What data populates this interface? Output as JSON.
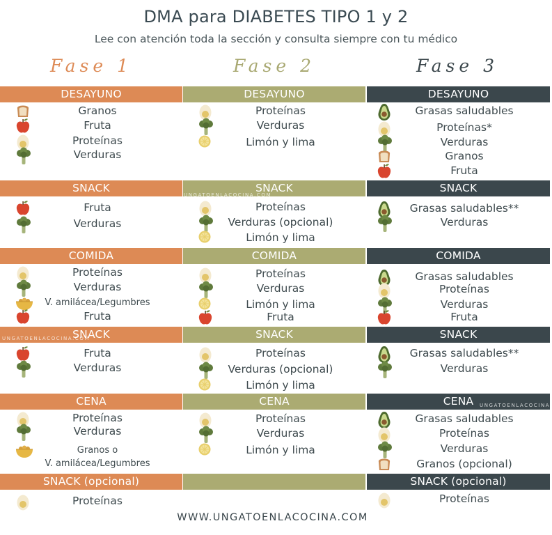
{
  "header": {
    "title": "DMA para DIABETES TIPO 1 y 2",
    "subtitle": "Lee con atención toda la sección y consulta siempre con tu médico"
  },
  "phases": [
    "Fase 1",
    "Fase 2",
    "Fase 3"
  ],
  "colors": {
    "fase1": "#dd8a55",
    "fase2": "#abab72",
    "fase3": "#3b474c",
    "text": "#3e4a4e"
  },
  "columns": [
    {
      "sections": [
        {
          "title": "DESAYUNO",
          "items": [
            {
              "icon": "bread-icon",
              "label": "Granos"
            },
            {
              "icon": "apple-icon",
              "label": "Fruta"
            },
            {
              "icon": "egg-icon",
              "label": "Proteínas"
            },
            {
              "icon": "broccoli-icon",
              "label": "Verduras"
            }
          ]
        },
        {
          "title": "SNACK",
          "items": [
            {
              "icon": "apple-icon",
              "label": "Fruta"
            },
            {
              "icon": "broccoli-icon",
              "label": "Verduras"
            }
          ]
        },
        {
          "title": "COMIDA",
          "items": [
            {
              "icon": "egg-icon",
              "label": "Proteínas"
            },
            {
              "icon": "broccoli-icon",
              "label": "Verduras"
            },
            {
              "icon": "legume-bowl-icon",
              "label": "V. amilácea/Legumbres"
            },
            {
              "icon": "apple-icon",
              "label": "Fruta"
            }
          ]
        },
        {
          "title": "SNACK",
          "items": [
            {
              "icon": "apple-icon",
              "label": "Fruta"
            },
            {
              "icon": "broccoli-icon",
              "label": "Verduras"
            }
          ]
        },
        {
          "title": "CENA",
          "items": [
            {
              "icon": "egg-icon",
              "label": "Proteínas"
            },
            {
              "icon": "broccoli-icon",
              "label": "Verduras"
            },
            {
              "icon": "legume-bowl-icon",
              "label": "Granos o"
            },
            {
              "icon": "",
              "label": "V. amilácea/Legumbres"
            }
          ]
        },
        {
          "title": "SNACK (opcional)",
          "items": [
            {
              "icon": "egg-icon",
              "label": "Proteínas"
            }
          ]
        }
      ]
    },
    {
      "sections": [
        {
          "title": "DESAYUNO",
          "items": [
            {
              "icon": "egg-icon",
              "label": "Proteínas"
            },
            {
              "icon": "broccoli-icon",
              "label": "Verduras"
            },
            {
              "icon": "lemon-icon",
              "label": "Limón y lima"
            }
          ]
        },
        {
          "title": "SNACK",
          "items": [
            {
              "icon": "egg-icon",
              "label": "Proteínas"
            },
            {
              "icon": "broccoli-icon",
              "label": "Verduras (opcional)"
            },
            {
              "icon": "lemon-icon",
              "label": "Limón y lima"
            }
          ]
        },
        {
          "title": "COMIDA",
          "items": [
            {
              "icon": "egg-icon",
              "label": "Proteínas"
            },
            {
              "icon": "broccoli-icon",
              "label": "Verduras"
            },
            {
              "icon": "lemon-icon",
              "label": "Limón y lima"
            },
            {
              "icon": "apple-icon",
              "label": "Fruta"
            }
          ]
        },
        {
          "title": "SNACK",
          "items": [
            {
              "icon": "egg-icon",
              "label": "Proteínas"
            },
            {
              "icon": "broccoli-icon",
              "label": "Verduras (opcional)"
            },
            {
              "icon": "lemon-icon",
              "label": "Limón y lima"
            }
          ]
        },
        {
          "title": "CENA",
          "items": [
            {
              "icon": "egg-icon",
              "label": "Proteínas"
            },
            {
              "icon": "broccoli-icon",
              "label": "Verduras"
            },
            {
              "icon": "lemon-icon",
              "label": "Limón y lima"
            }
          ]
        },
        {
          "title": "",
          "items": []
        }
      ]
    },
    {
      "sections": [
        {
          "title": "DESAYUNO",
          "items": [
            {
              "icon": "avocado-icon",
              "label": "Grasas saludables"
            },
            {
              "icon": "egg-icon",
              "label": "Proteínas*"
            },
            {
              "icon": "broccoli-icon",
              "label": "Verduras"
            },
            {
              "icon": "bread-icon",
              "label": "Granos"
            },
            {
              "icon": "apple-icon",
              "label": "Fruta"
            }
          ]
        },
        {
          "title": "SNACK",
          "items": [
            {
              "icon": "avocado-icon",
              "label": "Grasas saludables**"
            },
            {
              "icon": "broccoli-icon",
              "label": "Verduras"
            }
          ]
        },
        {
          "title": "COMIDA",
          "items": [
            {
              "icon": "avocado-icon",
              "label": "Grasas saludables"
            },
            {
              "icon": "egg-icon",
              "label": "Proteínas"
            },
            {
              "icon": "broccoli-icon",
              "label": "Verduras"
            },
            {
              "icon": "apple-icon",
              "label": "Fruta"
            }
          ]
        },
        {
          "title": "SNACK",
          "items": [
            {
              "icon": "avocado-icon",
              "label": "Grasas saludables**"
            },
            {
              "icon": "broccoli-icon",
              "label": "Verduras"
            }
          ]
        },
        {
          "title": "CENA",
          "items": [
            {
              "icon": "avocado-icon",
              "label": "Grasas saludables"
            },
            {
              "icon": "egg-icon",
              "label": "Proteínas"
            },
            {
              "icon": "broccoli-icon",
              "label": "Verduras"
            },
            {
              "icon": "bread-icon",
              "label": "Granos (opcional)"
            }
          ]
        },
        {
          "title": "SNACK (opcional)",
          "items": [
            {
              "icon": "egg-icon",
              "label": "Proteínas"
            }
          ]
        }
      ]
    }
  ],
  "watermarks": [
    "UNGATOENLACOCINA.COM",
    "UNGATOENLACOCINA.COM",
    "UNGATOENLACOCINA.COM"
  ],
  "footer": {
    "url": "WWW.UNGATOENLACOCINA.COM"
  }
}
